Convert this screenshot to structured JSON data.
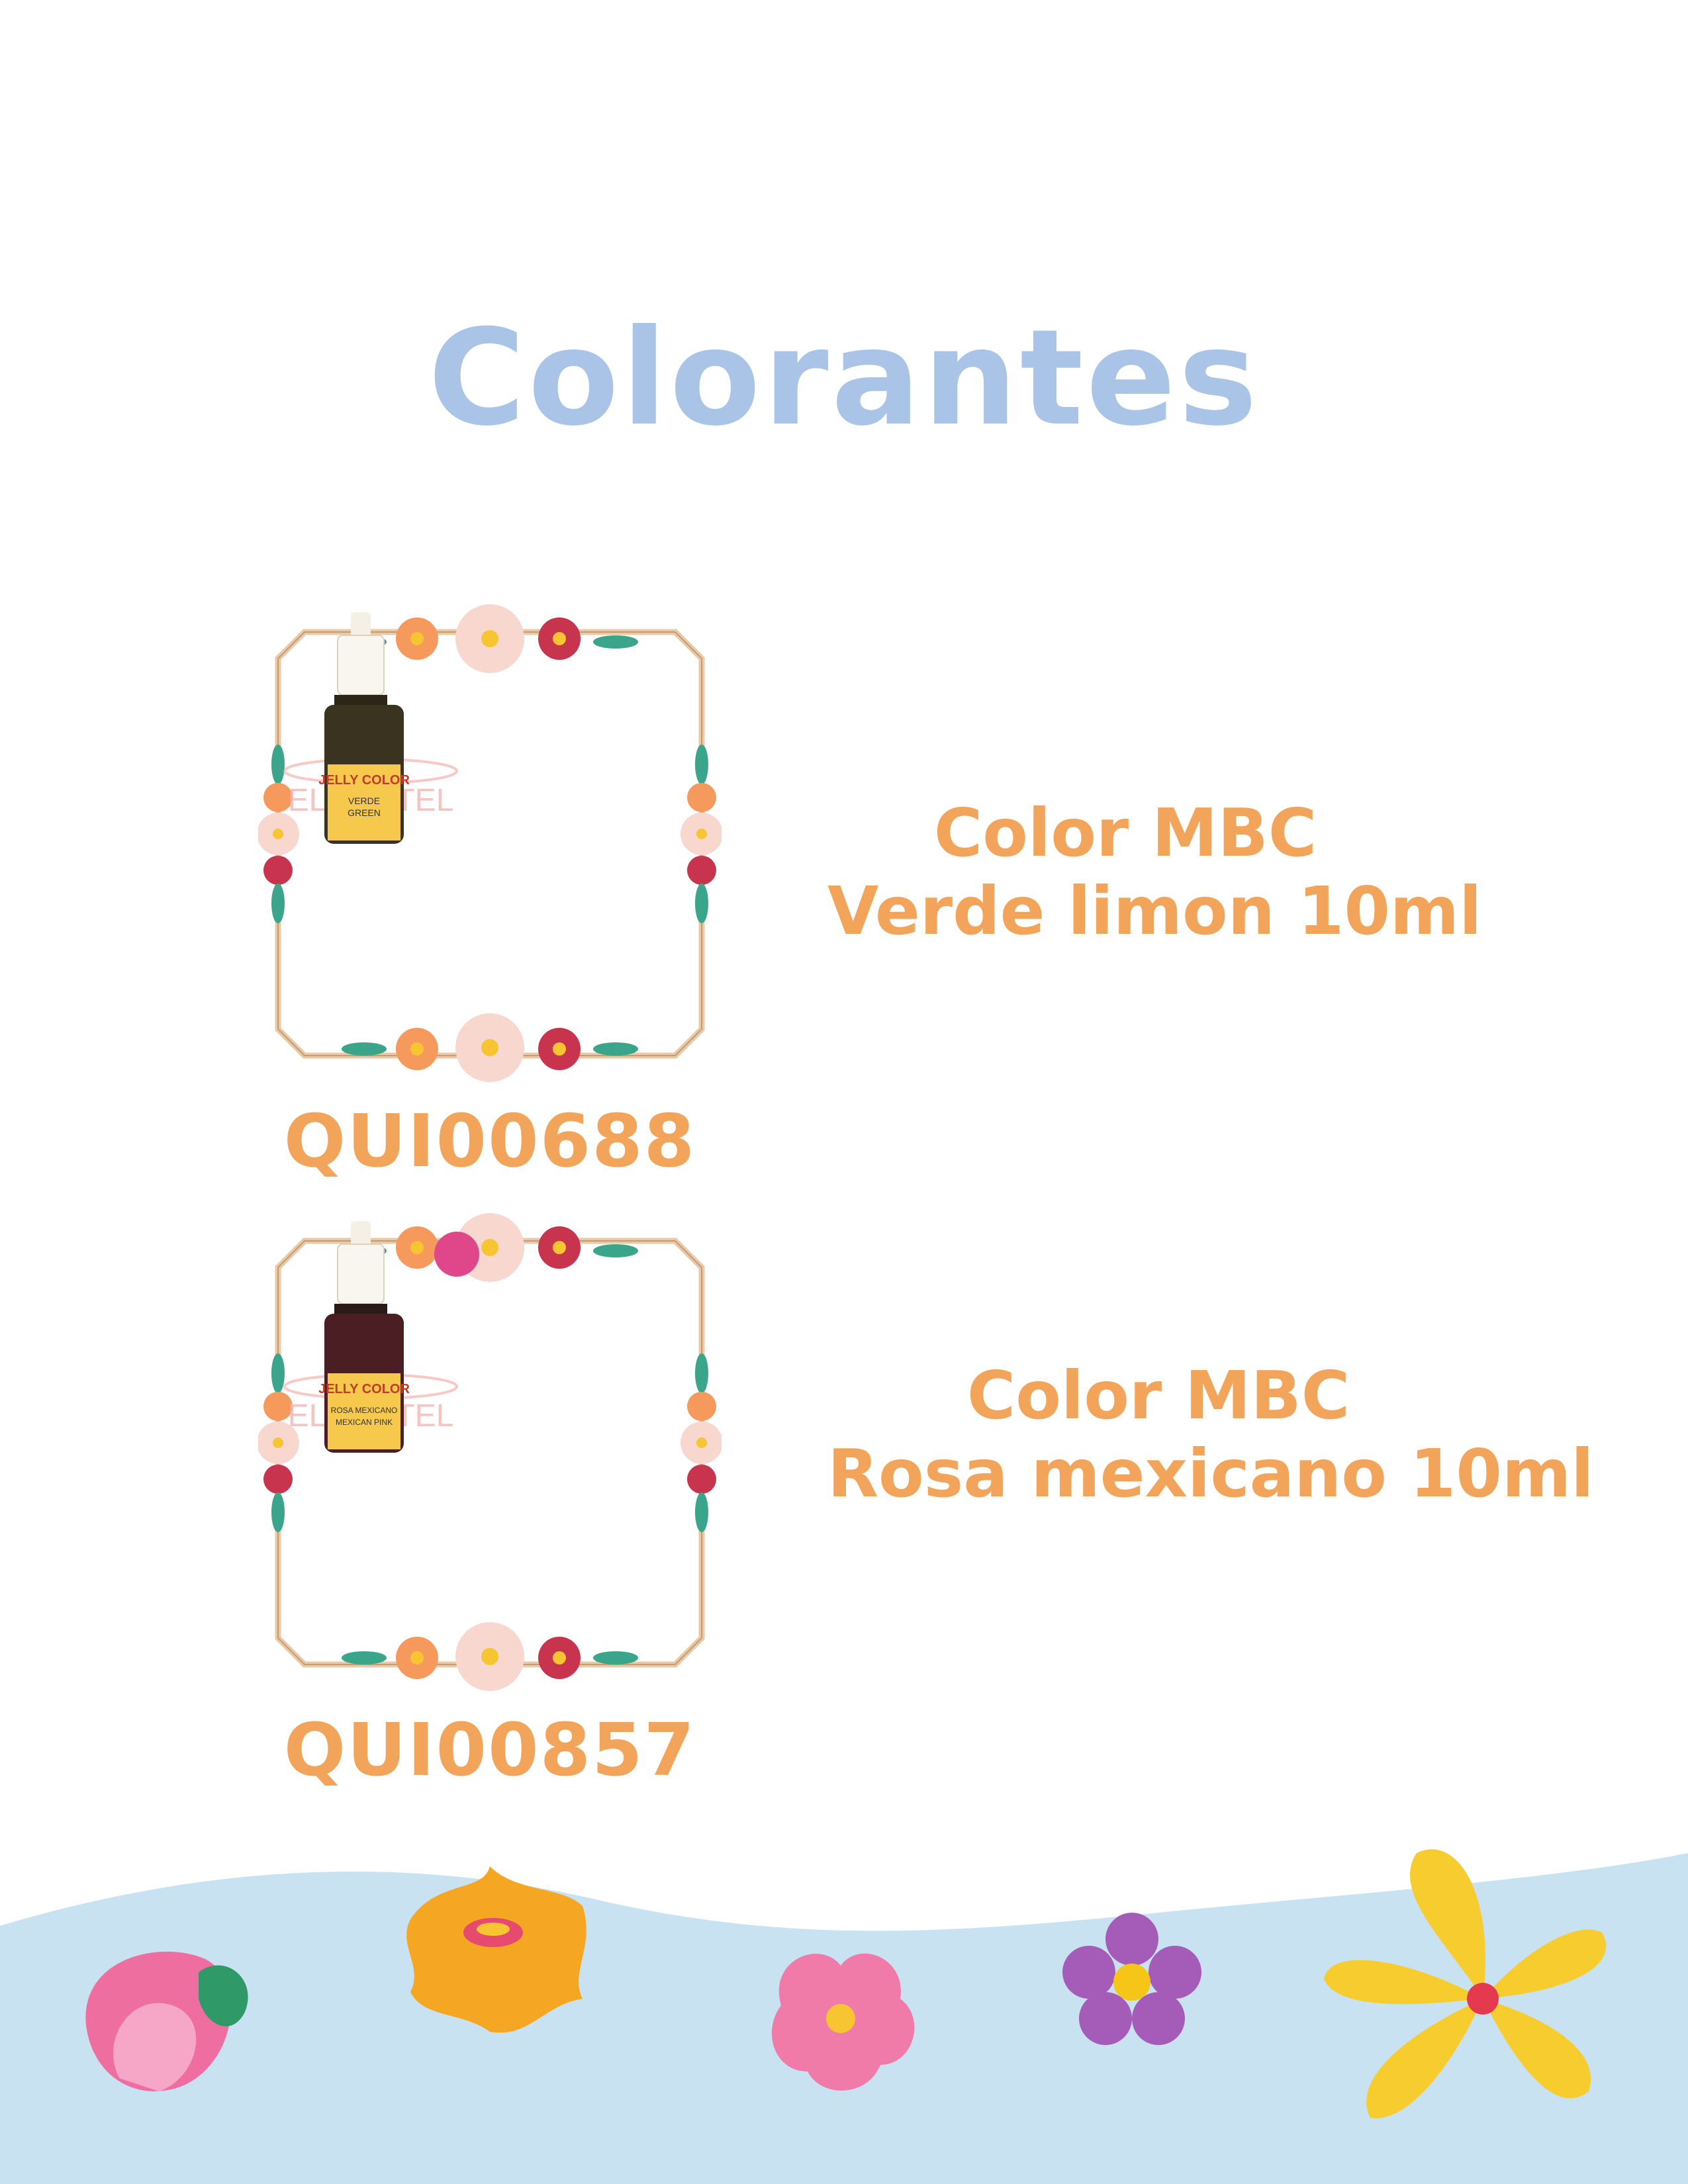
{
  "page": {
    "title": "Colorantes"
  },
  "products": [
    {
      "code": "QUI00688",
      "name_line1": "Color MBC",
      "name_line2": "Verde limon 10ml",
      "image": {
        "brand": "JELLY COLOR",
        "label_lines": [
          "VERDE",
          "GREEN"
        ],
        "watermark": "EL PASTEL",
        "liquid_color": "#3a3320"
      }
    },
    {
      "code": "QUI00857",
      "name_line1": "Color MBC",
      "name_line2": "Rosa mexicano 10ml",
      "image": {
        "brand": "JELLY COLOR",
        "label_lines": [
          "ROSA MEXICANO",
          "MEXICAN PINK"
        ],
        "watermark": "EL PASTEL",
        "liquid_color": "#4a1e22",
        "swatch_color": "#e0468a"
      }
    }
  ],
  "colors": {
    "title": "#a9c4e6",
    "accent": "#f2a55a",
    "frame": "#e8c9a8",
    "wave": "#c9e2f2"
  },
  "decorations": [
    "pink-tulip-icon",
    "orange-flower-icon",
    "pink-daisy-icon",
    "purple-flower-icon",
    "yellow-flower-icon"
  ]
}
